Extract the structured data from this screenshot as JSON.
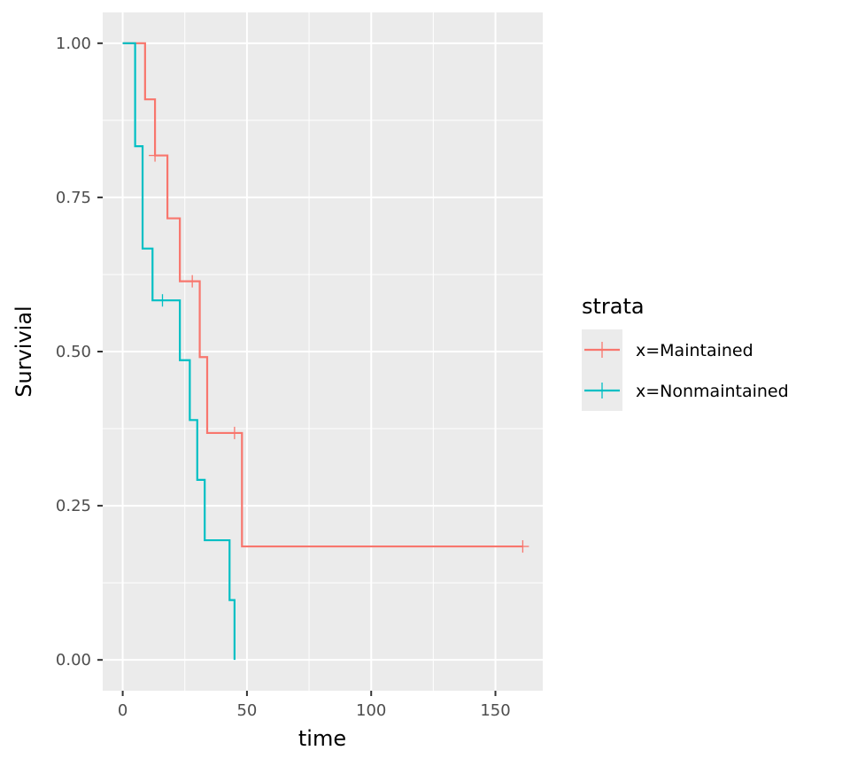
{
  "chart_data": {
    "type": "line",
    "step": true,
    "xlabel": "time",
    "ylabel": "Survivial",
    "xlim": [
      -8.05,
      169.05
    ],
    "ylim": [
      -0.05,
      1.05
    ],
    "x_ticks": [
      0,
      50,
      100,
      150
    ],
    "x_tick_labels": [
      "0",
      "50",
      "100",
      "150"
    ],
    "y_ticks": [
      0,
      0.25,
      0.5,
      0.75,
      1
    ],
    "y_tick_labels": [
      "0.00",
      "0.25",
      "0.50",
      "0.75",
      "1.00"
    ],
    "grid": true,
    "legend": {
      "title": "strata",
      "position": "right"
    },
    "series": [
      {
        "name": "x=Maintained",
        "color": "#F8766D",
        "steps": [
          [
            0,
            1.0
          ],
          [
            9,
            0.909
          ],
          [
            13,
            0.818
          ],
          [
            18,
            0.716
          ],
          [
            23,
            0.614
          ],
          [
            31,
            0.491
          ],
          [
            34,
            0.368
          ],
          [
            48,
            0.184
          ],
          [
            161,
            0.184
          ]
        ],
        "censored": [
          [
            13,
            0.818
          ],
          [
            28,
            0.614
          ],
          [
            45,
            0.368
          ],
          [
            161,
            0.184
          ]
        ]
      },
      {
        "name": "x=Nonmaintained",
        "color": "#00BFC4",
        "steps": [
          [
            0,
            1.0
          ],
          [
            5,
            0.833
          ],
          [
            8,
            0.667
          ],
          [
            12,
            0.583
          ],
          [
            23,
            0.486
          ],
          [
            27,
            0.389
          ],
          [
            30,
            0.292
          ],
          [
            33,
            0.194
          ],
          [
            43,
            0.097
          ],
          [
            45,
            0.0
          ]
        ],
        "censored": [
          [
            16,
            0.583
          ]
        ]
      }
    ]
  }
}
